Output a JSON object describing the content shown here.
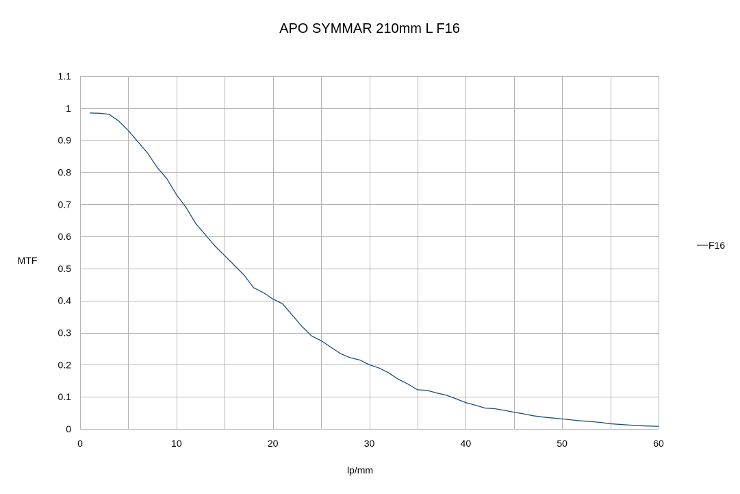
{
  "chart_data": {
    "type": "line",
    "title": "APO SYMMAR 210mm L  F16",
    "xlabel": "lp/mm",
    "ylabel": "MTF",
    "xlim": [
      0,
      60
    ],
    "ylim": [
      0,
      1.1
    ],
    "xticks": [
      "0",
      "10",
      "20",
      "30",
      "40",
      "50",
      "60"
    ],
    "yticks": [
      "0",
      "0.1",
      "0.2",
      "0.3",
      "0.4",
      "0.5",
      "0.6",
      "0.7",
      "0.8",
      "0.9",
      "1",
      "1.1"
    ],
    "grid": true,
    "legend_position": "right",
    "series_color": "#1f4e79",
    "series": [
      {
        "name": "F16",
        "x": [
          1,
          2,
          3,
          4,
          5,
          6,
          7,
          8,
          9,
          10,
          11,
          12,
          13,
          14,
          15,
          16,
          17,
          18,
          19,
          20,
          21,
          22,
          23,
          24,
          25,
          26,
          27,
          28,
          29,
          30,
          31,
          32,
          33,
          34,
          35,
          36,
          37,
          38,
          39,
          40,
          41,
          42,
          43,
          44,
          45,
          46,
          47,
          48,
          49,
          50,
          51,
          52,
          53,
          54,
          55,
          56,
          57,
          58,
          59,
          60
        ],
        "y": [
          0.985,
          0.984,
          0.981,
          0.96,
          0.93,
          0.895,
          0.86,
          0.815,
          0.78,
          0.73,
          0.69,
          0.64,
          0.605,
          0.57,
          0.54,
          0.51,
          0.48,
          0.44,
          0.425,
          0.405,
          0.39,
          0.355,
          0.32,
          0.29,
          0.275,
          0.255,
          0.235,
          0.222,
          0.215,
          0.2,
          0.19,
          0.175,
          0.155,
          0.14,
          0.122,
          0.12,
          0.112,
          0.105,
          0.094,
          0.082,
          0.074,
          0.065,
          0.063,
          0.058,
          0.052,
          0.047,
          0.041,
          0.037,
          0.034,
          0.031,
          0.028,
          0.025,
          0.023,
          0.02,
          0.016,
          0.014,
          0.012,
          0.01,
          0.009,
          0.008
        ]
      }
    ]
  }
}
